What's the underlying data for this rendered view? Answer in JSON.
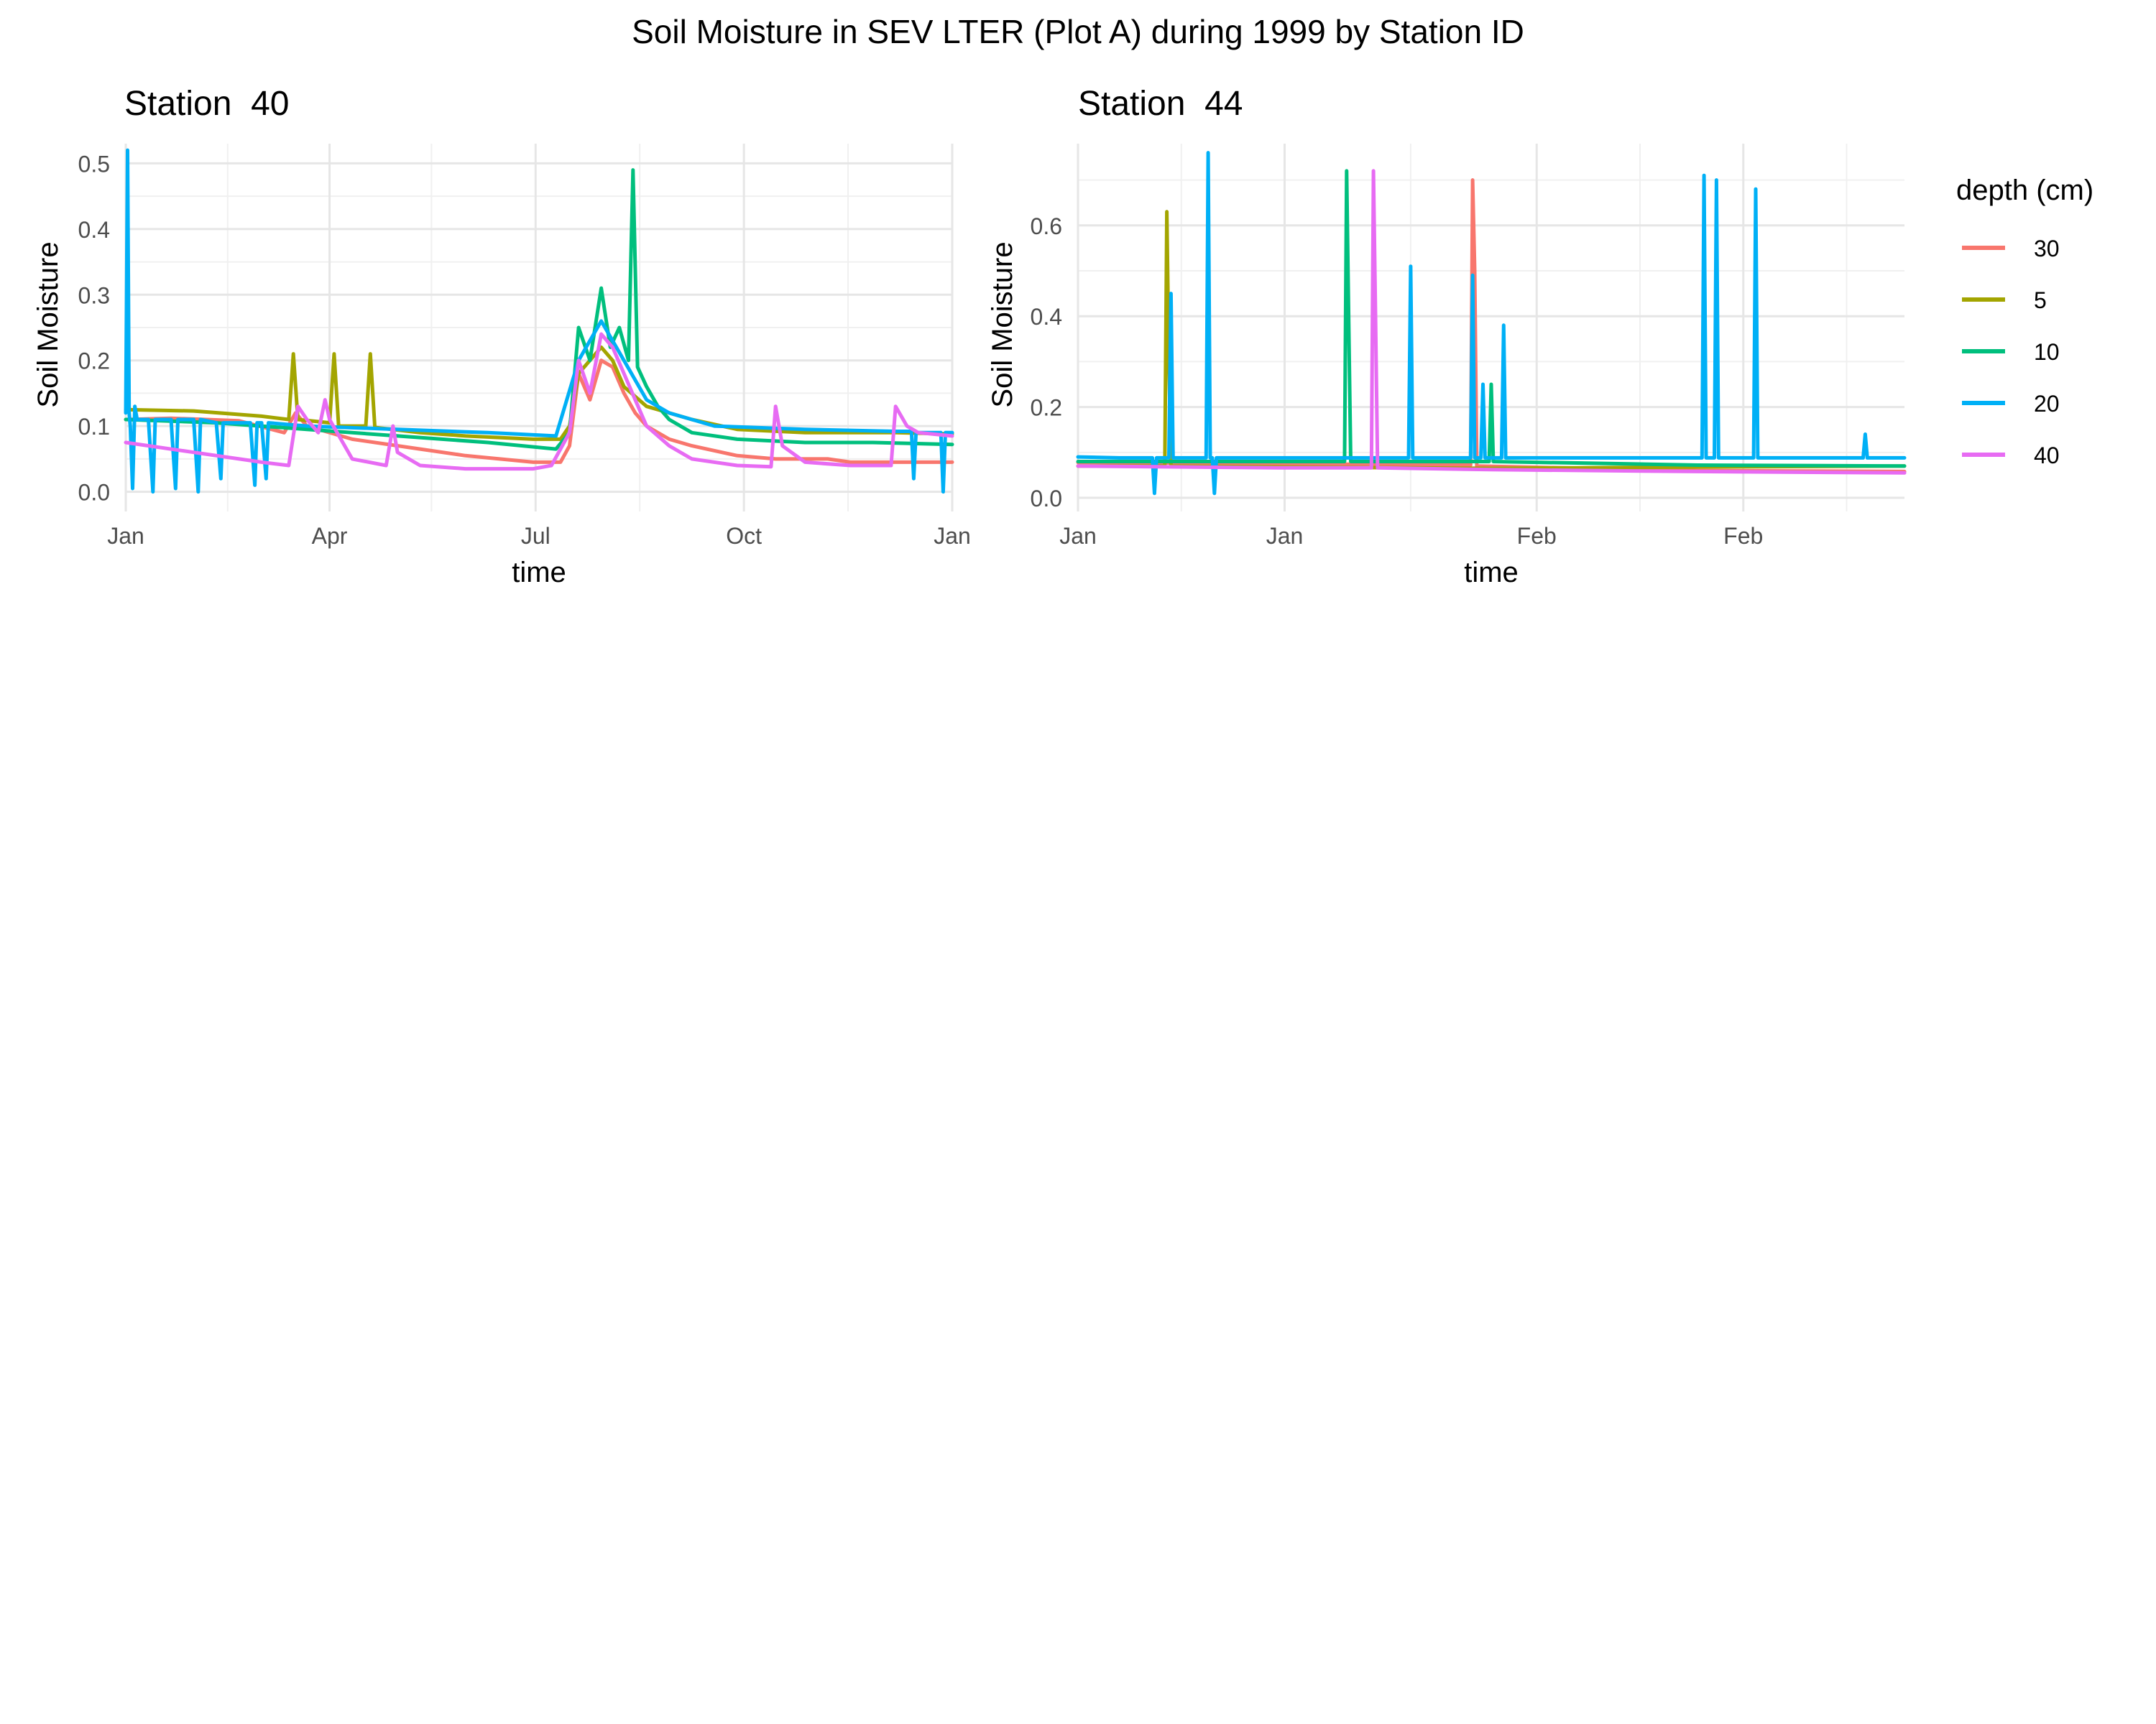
{
  "title": "Soil Moisture in SEV LTER (Plot A) during 1999 by Station ID",
  "legend": {
    "title": "depth (cm)",
    "position": "right",
    "entries": [
      {
        "label": "30",
        "color": "#F8766D"
      },
      {
        "label": "5",
        "color": "#A3A500"
      },
      {
        "label": "10",
        "color": "#00BF7D"
      },
      {
        "label": "20",
        "color": "#00B0F6"
      },
      {
        "label": "40",
        "color": "#E76BF3"
      }
    ]
  },
  "chart_data": [
    {
      "type": "line",
      "title": "Station  40",
      "xlabel": "time",
      "ylabel": "Soil Moisture",
      "xlim": [
        0,
        365
      ],
      "ylim": [
        -0.03,
        0.53
      ],
      "x_ticks": [
        {
          "x": 0,
          "label": "Jan"
        },
        {
          "x": 90,
          "label": "Apr"
        },
        {
          "x": 181,
          "label": "Jul"
        },
        {
          "x": 273,
          "label": "Oct"
        },
        {
          "x": 365,
          "label": "Jan"
        }
      ],
      "x_minor": [
        45,
        135,
        227,
        319
      ],
      "y_ticks": [
        0.0,
        0.1,
        0.2,
        0.3,
        0.4,
        0.5
      ],
      "y_tick_labels": [
        "0.0",
        "0.1",
        "0.2",
        "0.3",
        "0.4",
        "0.5"
      ],
      "series": [
        {
          "name": "30",
          "color": "#F8766D",
          "x": [
            0,
            20,
            50,
            70,
            75,
            80,
            100,
            130,
            150,
            180,
            192,
            196,
            200,
            205,
            210,
            215,
            220,
            225,
            230,
            240,
            250,
            270,
            287,
            300,
            310,
            320,
            340,
            365
          ],
          "y": [
            0.11,
            0.112,
            0.108,
            0.09,
            0.12,
            0.1,
            0.08,
            0.065,
            0.055,
            0.045,
            0.045,
            0.07,
            0.18,
            0.14,
            0.2,
            0.19,
            0.15,
            0.12,
            0.1,
            0.08,
            0.07,
            0.055,
            0.05,
            0.05,
            0.05,
            0.045,
            0.045,
            0.045
          ]
        },
        {
          "name": "5",
          "color": "#A3A500",
          "x": [
            0,
            30,
            60,
            72,
            74,
            76,
            90,
            92,
            94,
            106,
            108,
            110,
            130,
            150,
            180,
            192,
            196,
            200,
            210,
            215,
            220,
            230,
            250,
            270,
            300,
            340,
            365
          ],
          "y": [
            0.125,
            0.123,
            0.115,
            0.11,
            0.21,
            0.11,
            0.105,
            0.21,
            0.1,
            0.1,
            0.21,
            0.098,
            0.09,
            0.085,
            0.08,
            0.08,
            0.1,
            0.18,
            0.22,
            0.2,
            0.16,
            0.13,
            0.11,
            0.095,
            0.09,
            0.09,
            0.088
          ]
        },
        {
          "name": "10",
          "color": "#00BF7D",
          "x": [
            0,
            40,
            80,
            120,
            160,
            190,
            196,
            200,
            205,
            210,
            214,
            218,
            222,
            224,
            226,
            230,
            235,
            240,
            250,
            270,
            300,
            330,
            365
          ],
          "y": [
            0.11,
            0.105,
            0.095,
            0.085,
            0.075,
            0.065,
            0.09,
            0.25,
            0.2,
            0.31,
            0.22,
            0.25,
            0.2,
            0.49,
            0.19,
            0.16,
            0.13,
            0.11,
            0.09,
            0.08,
            0.075,
            0.075,
            0.072
          ]
        },
        {
          "name": "20",
          "color": "#00B0F6",
          "x": [
            0,
            0.8,
            1.5,
            2,
            3,
            4,
            5,
            10,
            12,
            13,
            20,
            22,
            23,
            30,
            32,
            33,
            40,
            42,
            43,
            55,
            57,
            58,
            60,
            62,
            63,
            80,
            120,
            160,
            190,
            200,
            210,
            215,
            220,
            225,
            230,
            240,
            260,
            300,
            340,
            347,
            348,
            349,
            360,
            361,
            362,
            365
          ],
          "y": [
            0.12,
            0.52,
            0.12,
            0.1,
            0.005,
            0.13,
            0.11,
            0.11,
            0.0,
            0.11,
            0.11,
            0.005,
            0.11,
            0.11,
            0.0,
            0.11,
            0.105,
            0.02,
            0.105,
            0.105,
            0.01,
            0.105,
            0.105,
            0.02,
            0.105,
            0.1,
            0.095,
            0.09,
            0.085,
            0.2,
            0.26,
            0.23,
            0.2,
            0.17,
            0.14,
            0.12,
            0.1,
            0.095,
            0.092,
            0.092,
            0.02,
            0.09,
            0.09,
            0.0,
            0.09,
            0.09
          ]
        },
        {
          "name": "40",
          "color": "#E76BF3",
          "x": [
            0,
            30,
            60,
            72,
            76,
            80,
            85,
            88,
            90,
            100,
            115,
            118,
            120,
            130,
            150,
            180,
            188,
            196,
            200,
            205,
            210,
            215,
            220,
            225,
            230,
            240,
            250,
            270,
            285,
            287,
            290,
            300,
            320,
            338,
            340,
            345,
            350,
            365
          ],
          "y": [
            0.075,
            0.06,
            0.045,
            0.04,
            0.13,
            0.11,
            0.09,
            0.14,
            0.11,
            0.05,
            0.04,
            0.1,
            0.06,
            0.04,
            0.035,
            0.035,
            0.04,
            0.09,
            0.2,
            0.15,
            0.24,
            0.22,
            0.18,
            0.14,
            0.1,
            0.07,
            0.05,
            0.04,
            0.038,
            0.13,
            0.07,
            0.045,
            0.04,
            0.04,
            0.13,
            0.1,
            0.09,
            0.085
          ]
        }
      ]
    },
    {
      "type": "line",
      "title": "Station  44",
      "xlabel": "time",
      "ylabel": "Soil Moisture",
      "xlim": [
        0,
        40
      ],
      "ylim": [
        -0.03,
        0.78
      ],
      "x_ticks": [
        {
          "x": 0,
          "label": "Jan"
        },
        {
          "x": 10,
          "label": "Jan"
        },
        {
          "x": 22.2,
          "label": "Feb"
        },
        {
          "x": 32.2,
          "label": "Feb"
        }
      ],
      "x_minor": [
        5,
        16.1,
        27.2,
        37.2
      ],
      "y_ticks": [
        0.0,
        0.2,
        0.4,
        0.6
      ],
      "y_tick_labels": [
        "0.0",
        "0.2",
        "0.4",
        "0.6"
      ],
      "series": [
        {
          "name": "30",
          "color": "#F8766D",
          "x": [
            0,
            10,
            19,
            19.1,
            19.2,
            19.3,
            30,
            40
          ],
          "y": [
            0.078,
            0.075,
            0.072,
            0.7,
            0.5,
            0.07,
            0.06,
            0.058
          ]
        },
        {
          "name": "5",
          "color": "#A3A500",
          "x": [
            0,
            4.2,
            4.3,
            4.4,
            4.5,
            10,
            20,
            30,
            40
          ],
          "y": [
            0.07,
            0.07,
            0.63,
            0.3,
            0.07,
            0.068,
            0.065,
            0.068,
            0.07
          ]
        },
        {
          "name": "10",
          "color": "#00BF7D",
          "x": [
            0,
            12.9,
            13,
            13.1,
            13.2,
            19.9,
            20,
            20.1,
            30,
            40
          ],
          "y": [
            0.08,
            0.08,
            0.72,
            0.4,
            0.08,
            0.08,
            0.25,
            0.08,
            0.072,
            0.07
          ]
        },
        {
          "name": "20",
          "color": "#00B0F6",
          "x": [
            0,
            2,
            3.6,
            3.7,
            3.8,
            4.4,
            4.5,
            4.6,
            6.2,
            6.3,
            6.4,
            6.5,
            6.6,
            6.7,
            6.8,
            10,
            16,
            16.1,
            16.2,
            19,
            19.1,
            19.2,
            19.5,
            19.6,
            19.7,
            20.5,
            20.6,
            20.7,
            25,
            30.2,
            30.3,
            30.4,
            30.8,
            30.9,
            31,
            32.7,
            32.8,
            32.9,
            38,
            38.1,
            38.2,
            40
          ],
          "y": [
            0.09,
            0.088,
            0.088,
            0.01,
            0.088,
            0.088,
            0.45,
            0.088,
            0.088,
            0.76,
            0.088,
            0.088,
            0.01,
            0.088,
            0.088,
            0.088,
            0.088,
            0.51,
            0.088,
            0.088,
            0.49,
            0.088,
            0.088,
            0.25,
            0.088,
            0.088,
            0.38,
            0.088,
            0.088,
            0.088,
            0.71,
            0.088,
            0.088,
            0.7,
            0.088,
            0.088,
            0.68,
            0.088,
            0.088,
            0.14,
            0.088,
            0.088
          ]
        },
        {
          "name": "40",
          "color": "#E76BF3",
          "x": [
            0,
            10,
            14.2,
            14.3,
            14.4,
            14.5,
            20,
            30,
            40
          ],
          "y": [
            0.07,
            0.066,
            0.066,
            0.72,
            0.4,
            0.066,
            0.062,
            0.058,
            0.055
          ]
        }
      ]
    }
  ]
}
